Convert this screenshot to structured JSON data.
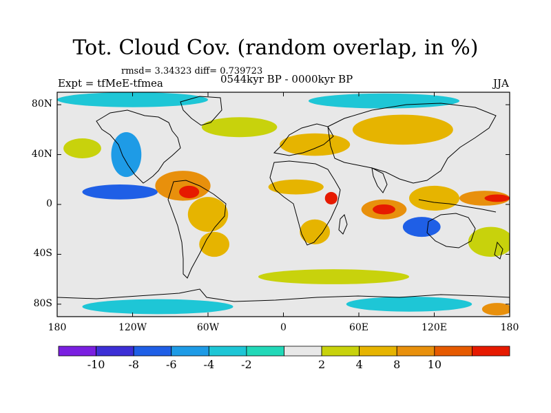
{
  "title": "Tot. Cloud Cov. (random overlap, in %)",
  "stats": "rmsd= 3.34323 diff= 0.739723",
  "expt": "Expt = tfMeE-tfmea",
  "period": "0544kyr BP - 0000kyr BP",
  "season": "JJA",
  "lon_ticks": [
    {
      "lon": -180,
      "label": "180"
    },
    {
      "lon": -120,
      "label": "120W"
    },
    {
      "lon": -60,
      "label": "60W"
    },
    {
      "lon": 0,
      "label": "0"
    },
    {
      "lon": 60,
      "label": "60E"
    },
    {
      "lon": 120,
      "label": "120E"
    },
    {
      "lon": 180,
      "label": "180"
    }
  ],
  "lat_ticks": [
    {
      "lat": 80,
      "label": "80N"
    },
    {
      "lat": 40,
      "label": "40N"
    },
    {
      "lat": 0,
      "label": "0"
    },
    {
      "lat": -40,
      "label": "40S"
    },
    {
      "lat": -80,
      "label": "80S"
    }
  ],
  "colorbar": {
    "colors": [
      "#7a1fe0",
      "#3d2fd6",
      "#1f5fe6",
      "#1e9be6",
      "#1ec6d6",
      "#22d8b8",
      "#e8e8e8",
      "#c8d20c",
      "#e6b400",
      "#e8900c",
      "#e65a00",
      "#e61a00"
    ],
    "labels": [
      "-10",
      "-8",
      "-6",
      "-4",
      "-2",
      "2",
      "4",
      "8",
      "10"
    ]
  },
  "map": {
    "background": "#e8e8e8",
    "lon_range": [
      -180,
      180
    ],
    "lat_range": [
      -90,
      90
    ],
    "anomaly_regions": [
      {
        "name": "arctic-band",
        "lon": -120,
        "lat": 84,
        "rx": 60,
        "ry": 6,
        "value": -3
      },
      {
        "name": "arctic-band-east",
        "lon": 80,
        "lat": 83,
        "rx": 60,
        "ry": 6,
        "value": -3
      },
      {
        "name": "n-atlantic-positive",
        "lon": -35,
        "lat": 62,
        "rx": 30,
        "ry": 8,
        "value": 3
      },
      {
        "name": "europe-positive",
        "lon": 25,
        "lat": 48,
        "rx": 28,
        "ry": 9,
        "value": 5
      },
      {
        "name": "siberia-positive",
        "lon": 95,
        "lat": 60,
        "rx": 40,
        "ry": 12,
        "value": 5
      },
      {
        "name": "n-america-negative",
        "lon": -125,
        "lat": 40,
        "rx": 12,
        "ry": 18,
        "value": -5
      },
      {
        "name": "n-pacific-positive",
        "lon": -160,
        "lat": 45,
        "rx": 15,
        "ry": 8,
        "value": 3
      },
      {
        "name": "e-pacific-negative",
        "lon": -130,
        "lat": 10,
        "rx": 30,
        "ry": 6,
        "value": -7
      },
      {
        "name": "central-america-positive",
        "lon": -80,
        "lat": 15,
        "rx": 22,
        "ry": 12,
        "value": 9
      },
      {
        "name": "caribbean-peak",
        "lon": -75,
        "lat": 10,
        "rx": 8,
        "ry": 5,
        "value": 11
      },
      {
        "name": "amazon-positive",
        "lon": -60,
        "lat": -8,
        "rx": 16,
        "ry": 14,
        "value": 6
      },
      {
        "name": "s-america-positive",
        "lon": -55,
        "lat": -32,
        "rx": 12,
        "ry": 10,
        "value": 5
      },
      {
        "name": "sahel-positive",
        "lon": 10,
        "lat": 14,
        "rx": 22,
        "ry": 6,
        "value": 4
      },
      {
        "name": "e-africa-peak",
        "lon": 38,
        "lat": 5,
        "rx": 5,
        "ry": 5,
        "value": 11
      },
      {
        "name": "s-africa-positive",
        "lon": 25,
        "lat": -22,
        "rx": 12,
        "ry": 10,
        "value": 7
      },
      {
        "name": "indian-ocean-positive",
        "lon": 80,
        "lat": -4,
        "rx": 18,
        "ry": 8,
        "value": 9
      },
      {
        "name": "indian-ocean-peak",
        "lon": 80,
        "lat": -4,
        "rx": 9,
        "ry": 4,
        "value": 11
      },
      {
        "name": "maritime-positive",
        "lon": 120,
        "lat": 5,
        "rx": 20,
        "ry": 10,
        "value": 5
      },
      {
        "name": "w-pacific-positive",
        "lon": 160,
        "lat": 5,
        "rx": 20,
        "ry": 6,
        "value": 8
      },
      {
        "name": "w-pacific-peak",
        "lon": 170,
        "lat": 5,
        "rx": 10,
        "ry": 3,
        "value": 11
      },
      {
        "name": "australia-negative",
        "lon": 110,
        "lat": -18,
        "rx": 15,
        "ry": 8,
        "value": -7
      },
      {
        "name": "s-pacific-positive",
        "lon": 165,
        "lat": -30,
        "rx": 18,
        "ry": 12,
        "value": 3
      },
      {
        "name": "s-ocean-positive",
        "lon": 40,
        "lat": -58,
        "rx": 60,
        "ry": 6,
        "value": 3
      },
      {
        "name": "antarctic-negative",
        "lon": -100,
        "lat": -82,
        "rx": 60,
        "ry": 6,
        "value": -3
      },
      {
        "name": "antarctic-negative-east",
        "lon": 100,
        "lat": -80,
        "rx": 50,
        "ry": 6,
        "value": -3
      },
      {
        "name": "antarctic-positive",
        "lon": 170,
        "lat": -84,
        "rx": 12,
        "ry": 5,
        "value": 9
      }
    ]
  }
}
